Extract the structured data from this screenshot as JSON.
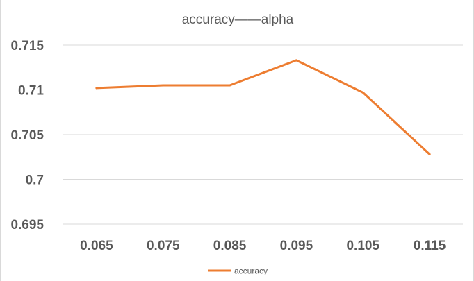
{
  "chart_data": {
    "type": "line",
    "title": "accuracy——alpha",
    "xlabel": "",
    "ylabel": "",
    "categories": [
      "0.065",
      "0.075",
      "0.085",
      "0.095",
      "0.105",
      "0.115"
    ],
    "series": [
      {
        "name": "accuracy",
        "color": "#ED7D31",
        "values": [
          0.7102,
          0.7105,
          0.7105,
          0.7133,
          0.7097,
          0.7028
        ]
      }
    ],
    "ylim": [
      0.695,
      0.715
    ],
    "yticks": [
      0.715,
      0.71,
      0.705,
      0.7,
      0.695
    ],
    "ytick_labels": [
      "0.715",
      "0.71",
      "0.705",
      "0.7",
      "0.695"
    ],
    "grid": true,
    "legend": "bottom"
  }
}
